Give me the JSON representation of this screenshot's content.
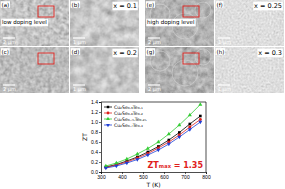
{
  "chart_data": {
    "type": "line",
    "x_label": "T (K)",
    "y_label": "ZT",
    "x": [
      323,
      373,
      423,
      473,
      523,
      573,
      623,
      673,
      723,
      773
    ],
    "xlim": [
      300,
      800
    ],
    "xticks": [
      300,
      400,
      500,
      600,
      700,
      800
    ],
    "ylim": [
      0,
      1.4
    ],
    "yticks": [
      {
        "value": 0,
        "label": "0.0"
      },
      0.2,
      0.4,
      0.6,
      0.8,
      {
        "value": 1,
        "label": "1.0"
      },
      1.2,
      1.4
    ],
    "legend": "upper left",
    "series": [
      {
        "name": "Cu₂Se₀.₉Te₀.₁",
        "color": "#000000",
        "marker": "square",
        "values": [
          0.1,
          0.15,
          0.22,
          0.3,
          0.4,
          0.51,
          0.64,
          0.79,
          0.96,
          1.12
        ]
      },
      {
        "name": "Cu₂Se₀.₈Te₀.₂",
        "color": "#e0201b",
        "marker": "circle",
        "values": [
          0.09,
          0.14,
          0.2,
          0.28,
          0.37,
          0.48,
          0.6,
          0.74,
          0.9,
          1.05
        ]
      },
      {
        "name": "Cu₂Se₀.₇₅Te₀.₂₅",
        "color": "#33cc33",
        "marker": "triangle",
        "values": [
          0.12,
          0.18,
          0.26,
          0.36,
          0.47,
          0.6,
          0.76,
          0.94,
          1.14,
          1.35
        ]
      },
      {
        "name": "Cu₂Se₀.₇Te₀.₃",
        "color": "#1f3fd6",
        "marker": "triangle-down",
        "values": [
          0.08,
          0.12,
          0.18,
          0.25,
          0.34,
          0.44,
          0.56,
          0.7,
          0.85,
          1.0
        ]
      }
    ],
    "annotations": [
      "ZTₘₐₓ = 1.35"
    ]
  },
  "images": [
    {
      "label": "(a)",
      "caption": "low doping level",
      "scale_bar": "2 μm"
    },
    {
      "label": "(b)",
      "composition": "x = 0.1",
      "scale_bar": "1 μm"
    },
    {
      "label": "(c)",
      "scale_bar": "2 μm"
    },
    {
      "label": "(d)",
      "composition": "x = 0.2",
      "scale_bar": "1 μm"
    },
    {
      "label": "(e)",
      "caption": "high doping level",
      "scale_bar": "2 μm"
    },
    {
      "label": "(f)",
      "composition": "x = 0.25",
      "scale_bar": "1 μm"
    },
    {
      "label": "(g)",
      "scale_bar": "2 μm"
    },
    {
      "label": "(h)",
      "composition": "x = 0.3",
      "scale_bar": "1 μm"
    }
  ]
}
